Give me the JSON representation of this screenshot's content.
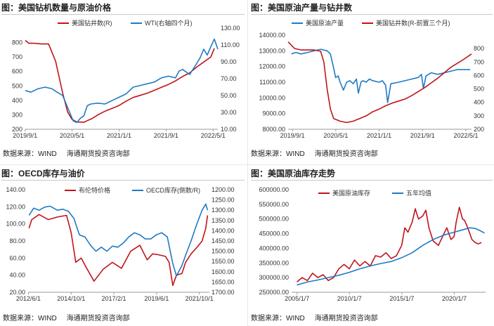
{
  "panels": [
    {
      "title": "图：美国钻机数量与原油价格",
      "source": "数据来源：WIND",
      "org": "海通期货投资咨询部"
    },
    {
      "title": "图：美国原油产量与钻井数",
      "source": "数据来源：WIND",
      "org": "海通期货投资咨询部"
    },
    {
      "title": "图：OECD库存与油价",
      "source": "数据来源：WIND",
      "org": "海通期货投资咨询部"
    },
    {
      "title": "图：美国原油库存走势",
      "source": "数据来源：WIND",
      "org": "海通期货投资咨询部"
    }
  ],
  "chart_data": [
    {
      "type": "line",
      "x_ticks": [
        "2019/9/1",
        "2020/5/1",
        "2021/1/1",
        "2021/9/1",
        "2022/5/1"
      ],
      "x_range": [
        2019.67,
        2022.4
      ],
      "y_left": {
        "range": [
          200,
          900
        ],
        "ticks": [
          "200",
          "300",
          "400",
          "500",
          "600",
          "700",
          "800"
        ]
      },
      "y_right": {
        "range": [
          10,
          130
        ],
        "ticks": [
          "10.00",
          "30.00",
          "50.00",
          "70.00",
          "90.00",
          "110.00",
          "130.00"
        ]
      },
      "legend_placement": "top",
      "series": [
        {
          "name": "美国钻井数(R)",
          "axis": "left",
          "color": "#c0141b",
          "x": [
            2019.67,
            2019.72,
            2019.8,
            2019.9,
            2020.0,
            2020.1,
            2020.2,
            2020.27,
            2020.33,
            2020.4,
            2020.45,
            2020.5,
            2020.55,
            2020.62,
            2020.7,
            2020.8,
            2020.9,
            2021.0,
            2021.1,
            2021.2,
            2021.3,
            2021.4,
            2021.5,
            2021.6,
            2021.7,
            2021.8,
            2021.9,
            2022.0,
            2022.1,
            2022.2,
            2022.3,
            2022.35
          ],
          "values": [
            815,
            795,
            795,
            790,
            790,
            670,
            450,
            320,
            270,
            250,
            250,
            248,
            260,
            275,
            300,
            325,
            345,
            365,
            395,
            420,
            435,
            450,
            470,
            490,
            510,
            535,
            565,
            590,
            630,
            665,
            700,
            760
          ]
        },
        {
          "name": "WTI(右轴四个月)",
          "axis": "right",
          "color": "#1f7ac4",
          "x": [
            2019.67,
            2019.75,
            2019.85,
            2019.95,
            2020.05,
            2020.12,
            2020.2,
            2020.25,
            2020.3,
            2020.35,
            2020.4,
            2020.45,
            2020.5,
            2020.55,
            2020.6,
            2020.7,
            2020.8,
            2020.9,
            2021.0,
            2021.1,
            2021.2,
            2021.3,
            2021.4,
            2021.5,
            2021.6,
            2021.7,
            2021.8,
            2021.85,
            2021.9,
            2022.0,
            2022.1,
            2022.15,
            2022.2,
            2022.25,
            2022.3,
            2022.35,
            2022.4
          ],
          "values": [
            56,
            54,
            58,
            60,
            58,
            54,
            50,
            40,
            30,
            20,
            18,
            23,
            26,
            38,
            40,
            41,
            40,
            44,
            48,
            52,
            60,
            62,
            64,
            66,
            71,
            73,
            71,
            79,
            81,
            75,
            88,
            95,
            105,
            98,
            108,
            117,
            105
          ]
        }
      ]
    },
    {
      "type": "line",
      "x_ticks": [
        "2019/9/1",
        "2020/5/1",
        "2021/1/1",
        "2021/9/1",
        "2022/5/1"
      ],
      "x_range": [
        2019.6,
        2022.42
      ],
      "y_left": {
        "range": [
          8000,
          14000
        ],
        "ticks": [
          "8000.00",
          "9000.00",
          "10000.00",
          "11000.00",
          "12000.00",
          "13000.00",
          "14000.00"
        ]
      },
      "y_right": {
        "range": [
          200,
          900
        ],
        "ticks": [
          "200",
          "300",
          "400",
          "500",
          "600",
          "700",
          "800"
        ]
      },
      "legend_placement": "top",
      "series": [
        {
          "name": "美国原油产量",
          "axis": "left",
          "color": "#1f7ac4",
          "x": [
            2019.65,
            2019.72,
            2019.8,
            2019.9,
            2020.0,
            2020.1,
            2020.2,
            2020.25,
            2020.3,
            2020.33,
            2020.37,
            2020.4,
            2020.45,
            2020.5,
            2020.55,
            2020.6,
            2020.65,
            2020.68,
            2020.72,
            2020.75,
            2020.8,
            2020.85,
            2020.9,
            2021.0,
            2021.05,
            2021.1,
            2021.13,
            2021.18,
            2021.3,
            2021.5,
            2021.6,
            2021.65,
            2021.68,
            2021.72,
            2021.8,
            2021.9,
            2022.0,
            2022.1,
            2022.2,
            2022.3,
            2022.4
          ],
          "values": [
            12800,
            12900,
            12800,
            12900,
            13000,
            13100,
            13000,
            12800,
            11900,
            11300,
            11400,
            11000,
            10500,
            11000,
            11100,
            10900,
            11200,
            10300,
            11000,
            11100,
            11000,
            11200,
            11100,
            11000,
            11100,
            10800,
            9700,
            10900,
            11000,
            11200,
            11300,
            11500,
            10600,
            11400,
            11600,
            11500,
            11600,
            11700,
            11800,
            11800,
            11800
          ]
        },
        {
          "name": "美国钻井数(R-前置三个月)",
          "axis": "right",
          "color": "#c0141b",
          "x": [
            2019.6,
            2019.7,
            2019.8,
            2019.9,
            2020.0,
            2020.1,
            2020.15,
            2020.2,
            2020.25,
            2020.3,
            2020.4,
            2020.5,
            2020.6,
            2020.7,
            2020.8,
            2020.9,
            2021.0,
            2021.1,
            2021.2,
            2021.3,
            2021.4,
            2021.5,
            2021.6,
            2021.7,
            2021.8,
            2021.9,
            2022.0,
            2022.1,
            2022.2,
            2022.3,
            2022.42
          ],
          "values": [
            850,
            800,
            790,
            790,
            790,
            780,
            700,
            500,
            350,
            280,
            260,
            250,
            260,
            280,
            300,
            330,
            350,
            375,
            395,
            410,
            425,
            450,
            480,
            510,
            545,
            580,
            620,
            660,
            690,
            720,
            760
          ]
        }
      ]
    },
    {
      "type": "line",
      "x_ticks": [
        "2012/6/1",
        "2014/10/1",
        "2017/2/1",
        "2019/6/1",
        "2021/10/1"
      ],
      "x_range": [
        2012.4,
        2022.3
      ],
      "y_left": {
        "range": [
          20,
          140
        ],
        "ticks": [
          "20.00",
          "40.00",
          "60.00",
          "80.00",
          "100.00",
          "120.00",
          "140.00"
        ]
      },
      "y_right": {
        "range": [
          1200,
          1700
        ],
        "inverted": true,
        "ticks": [
          "1200.00",
          "1250.00",
          "1300.00",
          "1350.00",
          "1400.00",
          "1450.00",
          "1500.00",
          "1550.00",
          "1600.00",
          "1650.00",
          "1700.00"
        ]
      },
      "legend_placement": "top",
      "series": [
        {
          "name": "布伦特价格",
          "axis": "left",
          "color": "#c0141b",
          "x": [
            2012.45,
            2012.6,
            2013.0,
            2013.5,
            2014.0,
            2014.5,
            2014.75,
            2015.0,
            2015.3,
            2015.6,
            2016.0,
            2016.5,
            2017.0,
            2017.5,
            2018.0,
            2018.5,
            2018.9,
            2019.2,
            2019.5,
            2019.9,
            2020.1,
            2020.3,
            2020.5,
            2020.8,
            2021.0,
            2021.3,
            2021.6,
            2021.9,
            2022.1,
            2022.2
          ],
          "values": [
            95,
            105,
            111,
            105,
            108,
            110,
            90,
            55,
            60,
            48,
            33,
            47,
            55,
            48,
            68,
            75,
            58,
            65,
            64,
            62,
            55,
            28,
            40,
            42,
            55,
            65,
            72,
            80,
            95,
            110
          ]
        },
        {
          "name": "OECD库存(倒数/R)",
          "axis": "right",
          "color": "#1f7ac4",
          "x": [
            2012.45,
            2012.7,
            2013.0,
            2013.3,
            2013.6,
            2014.0,
            2014.3,
            2014.6,
            2014.9,
            2015.2,
            2015.5,
            2015.8,
            2016.1,
            2016.4,
            2016.7,
            2017.0,
            2017.3,
            2017.6,
            2017.9,
            2018.2,
            2018.5,
            2018.8,
            2019.1,
            2019.4,
            2019.7,
            2020.0,
            2020.3,
            2020.5,
            2020.8,
            2021.0,
            2021.3,
            2021.6,
            2021.9,
            2022.1,
            2022.2
          ],
          "values": [
            1325,
            1290,
            1300,
            1285,
            1280,
            1300,
            1295,
            1305,
            1340,
            1420,
            1430,
            1470,
            1500,
            1480,
            1500,
            1475,
            1480,
            1460,
            1430,
            1410,
            1420,
            1440,
            1440,
            1420,
            1410,
            1430,
            1560,
            1620,
            1570,
            1520,
            1450,
            1370,
            1300,
            1270,
            1300
          ]
        }
      ]
    },
    {
      "type": "line",
      "x_ticks": [
        "2005/1/7",
        "2010/1/7",
        "2015/1/7",
        "2020/1/7"
      ],
      "x_range": [
        2004.5,
        2023.0
      ],
      "y_left": {
        "range": [
          250000,
          600000
        ],
        "ticks": [
          "250000.00",
          "300000.00",
          "350000.00",
          "400000.00",
          "450000.00",
          "500000.00",
          "550000.00",
          "600000.00"
        ]
      },
      "legend_placement": "top",
      "series": [
        {
          "name": "美国原油库存",
          "axis": "left",
          "color": "#c0141b",
          "x": [
            2005.0,
            2005.5,
            2006.0,
            2006.5,
            2007.0,
            2007.5,
            2008.0,
            2008.5,
            2009.0,
            2009.5,
            2010.0,
            2010.5,
            2011.0,
            2011.5,
            2012.0,
            2012.5,
            2013.0,
            2013.5,
            2014.0,
            2014.5,
            2015.0,
            2015.3,
            2015.6,
            2016.0,
            2016.3,
            2016.6,
            2017.0,
            2017.3,
            2017.6,
            2018.0,
            2018.5,
            2018.9,
            2019.3,
            2019.7,
            2020.0,
            2020.2,
            2020.5,
            2020.8,
            2021.0,
            2021.3,
            2021.7,
            2022.0,
            2022.3,
            2022.6
          ],
          "values": [
            285000,
            300000,
            290000,
            315000,
            300000,
            310000,
            290000,
            300000,
            330000,
            345000,
            330000,
            360000,
            340000,
            355000,
            340000,
            375000,
            370000,
            385000,
            365000,
            375000,
            410000,
            470000,
            455000,
            490000,
            535000,
            500000,
            510000,
            530000,
            470000,
            425000,
            410000,
            440000,
            470000,
            430000,
            440000,
            490000,
            540000,
            500000,
            495000,
            470000,
            430000,
            420000,
            415000,
            420000
          ]
        },
        {
          "name": "五年均值",
          "axis": "left",
          "color": "#1f7ac4",
          "x": [
            2005.0,
            2006.0,
            2007.0,
            2008.0,
            2009.0,
            2010.0,
            2011.0,
            2012.0,
            2013.0,
            2014.0,
            2015.0,
            2016.0,
            2017.0,
            2018.0,
            2019.0,
            2020.0,
            2021.0,
            2021.5,
            2022.0,
            2022.5,
            2022.9
          ],
          "values": [
            275000,
            285000,
            292000,
            300000,
            308000,
            318000,
            330000,
            340000,
            348000,
            355000,
            368000,
            385000,
            410000,
            430000,
            445000,
            455000,
            465000,
            470000,
            468000,
            460000,
            452000
          ]
        }
      ]
    }
  ]
}
